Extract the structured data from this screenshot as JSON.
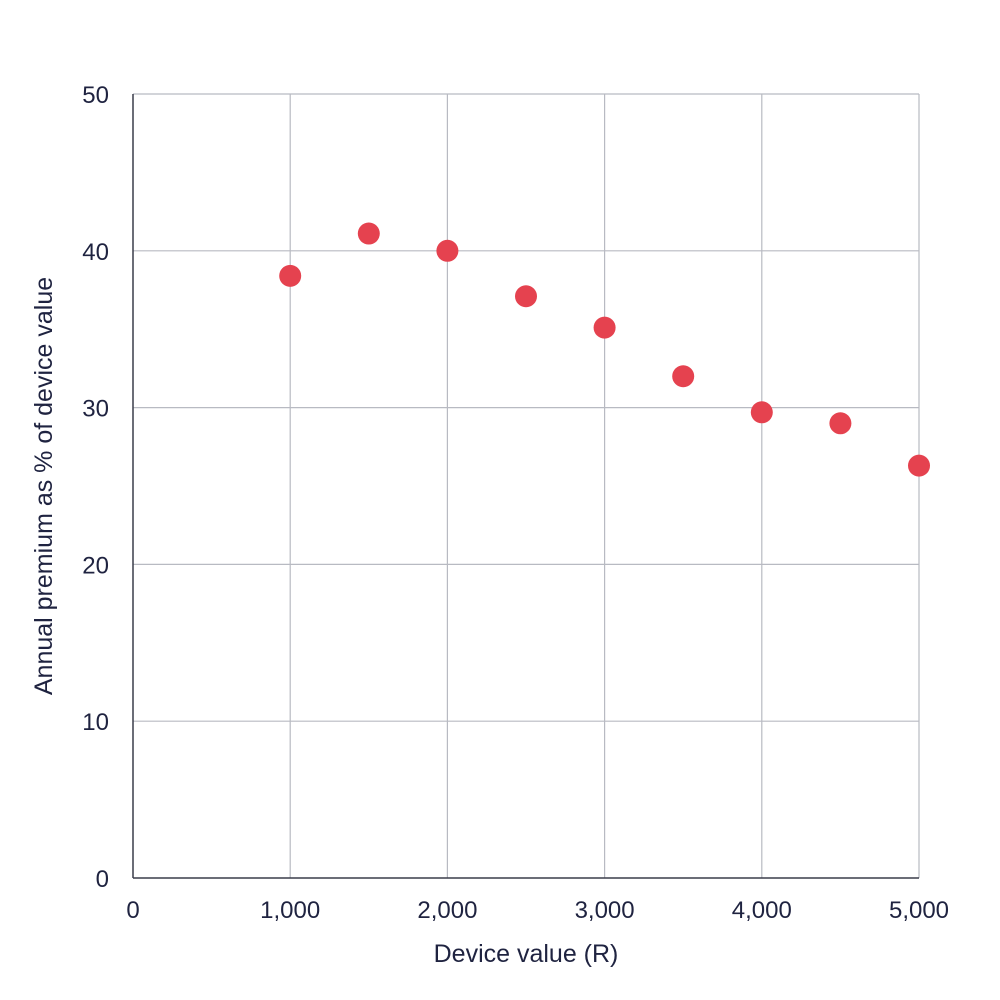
{
  "chart_data": {
    "type": "scatter",
    "title": "",
    "xlabel": "Device value (R)",
    "ylabel": "Annual premium as % of device value",
    "xlim": [
      0,
      5000
    ],
    "ylim": [
      0,
      50
    ],
    "x_ticks": [
      0,
      1000,
      2000,
      3000,
      4000,
      5000
    ],
    "x_tick_labels": [
      "0",
      "1,000",
      "2,000",
      "3,000",
      "4,000",
      "5,000"
    ],
    "y_ticks": [
      0,
      10,
      20,
      30,
      40,
      50
    ],
    "y_tick_labels": [
      "0",
      "10",
      "20",
      "30",
      "40",
      "50"
    ],
    "grid": true,
    "colors": {
      "point": "#e5424f",
      "grid": "#b8bac2",
      "text": "#1f2340"
    },
    "series": [
      {
        "points": [
          {
            "x": 1000,
            "y": 38.4
          },
          {
            "x": 1500,
            "y": 41.1
          },
          {
            "x": 2000,
            "y": 40.0
          },
          {
            "x": 2500,
            "y": 37.1
          },
          {
            "x": 3000,
            "y": 35.1
          },
          {
            "x": 3500,
            "y": 32.0
          },
          {
            "x": 4000,
            "y": 29.7
          },
          {
            "x": 4500,
            "y": 29.0
          },
          {
            "x": 5000,
            "y": 26.3
          }
        ]
      }
    ]
  }
}
